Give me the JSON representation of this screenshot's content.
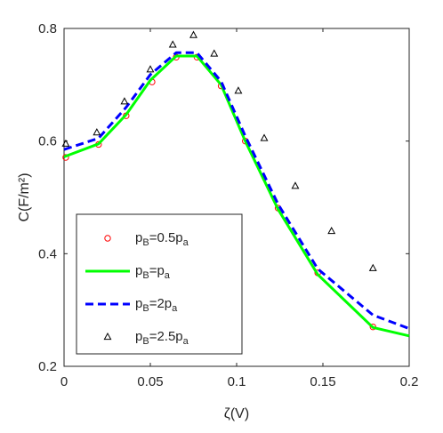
{
  "chart_data": {
    "type": "line",
    "xlabel": "ζ(V)",
    "ylabel": "C(F/m²)",
    "xlim": [
      0,
      0.2
    ],
    "ylim": [
      0.2,
      0.8
    ],
    "xticks": [
      0,
      0.05,
      0.1,
      0.15,
      0.2
    ],
    "xtick_labels": [
      "0",
      "0.05",
      "0.1",
      "0.15",
      "0.2"
    ],
    "yticks": [
      0.2,
      0.4,
      0.6,
      0.8
    ],
    "ytick_labels": [
      "0.2",
      "0.4",
      "0.6",
      "0.8"
    ],
    "grid": false,
    "legend_position": "lower-left",
    "series": [
      {
        "name": "p_B=0.5p_a",
        "label_parts": [
          [
            "p",
            ""
          ],
          [
            "B",
            "sub"
          ],
          [
            "=0.5p",
            ""
          ],
          [
            "a",
            "sub"
          ]
        ],
        "style": "circle-markers",
        "color": "#ff0000",
        "x": [
          0.001,
          0.02,
          0.036,
          0.051,
          0.065,
          0.077,
          0.091,
          0.105,
          0.124,
          0.147,
          0.179
        ],
        "y": [
          0.571,
          0.594,
          0.645,
          0.705,
          0.749,
          0.749,
          0.698,
          0.6,
          0.481,
          0.366,
          0.27
        ]
      },
      {
        "name": "p_B=p_a",
        "label_parts": [
          [
            "p",
            ""
          ],
          [
            "B",
            "sub"
          ],
          [
            "=p",
            ""
          ],
          [
            "a",
            "sub"
          ]
        ],
        "style": "solid-line",
        "color": "#00ff00",
        "x": [
          0,
          0.02,
          0.036,
          0.05,
          0.065,
          0.077,
          0.091,
          0.105,
          0.124,
          0.147,
          0.179,
          0.2
        ],
        "y": [
          0.572,
          0.595,
          0.647,
          0.708,
          0.751,
          0.751,
          0.7,
          0.6,
          0.479,
          0.363,
          0.269,
          0.254
        ]
      },
      {
        "name": "p_B=2p_a",
        "label_parts": [
          [
            "p",
            ""
          ],
          [
            "B",
            "sub"
          ],
          [
            "=2p",
            ""
          ],
          [
            "a",
            "sub"
          ]
        ],
        "style": "dashed-line",
        "color": "#0000ff",
        "x": [
          0,
          0.02,
          0.036,
          0.05,
          0.065,
          0.077,
          0.091,
          0.105,
          0.124,
          0.147,
          0.179,
          0.2
        ],
        "y": [
          0.585,
          0.605,
          0.66,
          0.718,
          0.757,
          0.757,
          0.706,
          0.609,
          0.488,
          0.373,
          0.291,
          0.267
        ]
      },
      {
        "name": "p_B=2.5p_a",
        "label_parts": [
          [
            "p",
            ""
          ],
          [
            "B",
            "sub"
          ],
          [
            "=2.5p",
            ""
          ],
          [
            "a",
            "sub"
          ]
        ],
        "style": "triangle-markers",
        "color": "#000000",
        "x": [
          0.001,
          0.019,
          0.035,
          0.05,
          0.063,
          0.075,
          0.087,
          0.101,
          0.116,
          0.134,
          0.155,
          0.179
        ],
        "y": [
          0.595,
          0.615,
          0.67,
          0.727,
          0.771,
          0.788,
          0.755,
          0.689,
          0.605,
          0.52,
          0.44,
          0.374
        ]
      }
    ]
  }
}
